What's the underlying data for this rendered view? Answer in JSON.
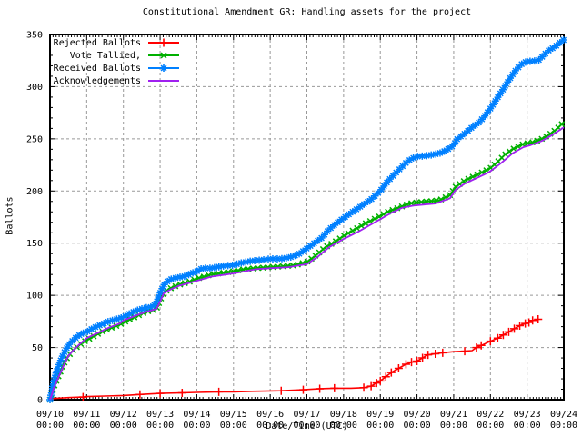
{
  "chart_data": {
    "type": "line",
    "title": "Constitutional Amendment GR: Handling assets for the project",
    "xlabel": "Date/Time (UTC)",
    "ylabel": "Ballots",
    "ylim": [
      0,
      350
    ],
    "y_tick_step": 50,
    "y_minor_step": 10,
    "x_minor_per_day": 12,
    "grid": true,
    "legend_position": "top-left-inside",
    "background_color": "#ffffff",
    "axis_color": "#000000",
    "grid_color": "#999999",
    "x_ticks": [
      {
        "date": "09/10",
        "time": "00:00"
      },
      {
        "date": "09/11",
        "time": "00:00"
      },
      {
        "date": "09/12",
        "time": "00:00"
      },
      {
        "date": "09/13",
        "time": "00:00"
      },
      {
        "date": "09/14",
        "time": "00:00"
      },
      {
        "date": "09/15",
        "time": "00:00"
      },
      {
        "date": "09/16",
        "time": "00:00"
      },
      {
        "date": "09/17",
        "time": "00:00"
      },
      {
        "date": "09/18",
        "time": "00:00"
      },
      {
        "date": "09/19",
        "time": "00:00"
      },
      {
        "date": "09/20",
        "time": "00:00"
      },
      {
        "date": "09/21",
        "time": "00:00"
      },
      {
        "date": "09/22",
        "time": "00:00"
      },
      {
        "date": "09/23",
        "time": "00:00"
      },
      {
        "date": "09/24",
        "time": "00:00"
      }
    ],
    "y_ticks": [
      0,
      50,
      100,
      150,
      200,
      250,
      300,
      350
    ],
    "series": [
      {
        "name": "Rejected Ballots",
        "color": "#ff0000",
        "marker": "plus",
        "line_width": 1.6,
        "points": [
          [
            0,
            1
          ],
          [
            0.5,
            2
          ],
          [
            0.9,
            2.5
          ],
          [
            1.0,
            3
          ],
          [
            1.5,
            3.5
          ],
          [
            2.0,
            4
          ],
          [
            2.45,
            5
          ],
          [
            3.0,
            6
          ],
          [
            3.6,
            6.5
          ],
          [
            4.0,
            7
          ],
          [
            4.6,
            7.5
          ],
          [
            5.0,
            7.5
          ],
          [
            5.5,
            8
          ],
          [
            6.3,
            8.5
          ],
          [
            6.9,
            9.5
          ],
          [
            7.35,
            10.5
          ],
          [
            7.75,
            11
          ],
          [
            8.2,
            11
          ],
          [
            8.55,
            11.5
          ],
          [
            8.75,
            13
          ],
          [
            8.9,
            16
          ],
          [
            9.0,
            18
          ],
          [
            9.15,
            22
          ],
          [
            9.3,
            26
          ],
          [
            9.5,
            30
          ],
          [
            9.7,
            34
          ],
          [
            9.85,
            36
          ],
          [
            10.0,
            37
          ],
          [
            10.15,
            40
          ],
          [
            10.3,
            43
          ],
          [
            10.5,
            44
          ],
          [
            10.7,
            45
          ],
          [
            11.0,
            46
          ],
          [
            11.3,
            46.5
          ],
          [
            11.5,
            47
          ],
          [
            11.62,
            50
          ],
          [
            11.75,
            52
          ],
          [
            12.0,
            56
          ],
          [
            12.2,
            59
          ],
          [
            12.35,
            62
          ],
          [
            12.5,
            65
          ],
          [
            12.65,
            68
          ],
          [
            12.8,
            71
          ],
          [
            12.95,
            73
          ],
          [
            13.05,
            74
          ],
          [
            13.15,
            76
          ],
          [
            13.3,
            77
          ]
        ],
        "marker_days": [
          0.9,
          2.45,
          3.0,
          3.6,
          4.6,
          6.3,
          6.9,
          7.35,
          7.75,
          8.55,
          8.75,
          8.9,
          9.0,
          9.15,
          9.3,
          9.5,
          9.7,
          9.85,
          10.0,
          10.15,
          10.3,
          10.5,
          10.7,
          11.3,
          11.62,
          11.75,
          12.0,
          12.2,
          12.35,
          12.5,
          12.65,
          12.8,
          12.95,
          13.05,
          13.15,
          13.3
        ]
      },
      {
        "name": "Vote Tallied,",
        "color": "#00b000",
        "marker": "cross",
        "line_width": 2,
        "marker_spacing_px": 5.5,
        "points": [
          [
            0,
            0
          ],
          [
            0.05,
            6
          ],
          [
            0.1,
            12
          ],
          [
            0.2,
            20
          ],
          [
            0.3,
            28
          ],
          [
            0.4,
            36
          ],
          [
            0.5,
            42
          ],
          [
            0.62,
            47
          ],
          [
            0.75,
            51
          ],
          [
            0.9,
            55
          ],
          [
            1.0,
            57
          ],
          [
            1.3,
            63
          ],
          [
            1.6,
            68
          ],
          [
            1.9,
            72
          ],
          [
            2.0,
            74
          ],
          [
            2.3,
            79
          ],
          [
            2.6,
            84
          ],
          [
            2.9,
            87
          ],
          [
            3.0,
            95
          ],
          [
            3.1,
            103
          ],
          [
            3.3,
            107
          ],
          [
            3.5,
            110
          ],
          [
            3.8,
            113
          ],
          [
            4.0,
            116
          ],
          [
            4.4,
            120
          ],
          [
            4.8,
            122
          ],
          [
            5.0,
            123
          ],
          [
            5.3,
            125
          ],
          [
            5.6,
            126
          ],
          [
            6.0,
            127
          ],
          [
            6.4,
            128
          ],
          [
            6.7,
            129
          ],
          [
            7.0,
            132
          ],
          [
            7.2,
            137
          ],
          [
            7.5,
            146
          ],
          [
            7.8,
            152
          ],
          [
            8.0,
            157
          ],
          [
            8.3,
            163
          ],
          [
            8.6,
            169
          ],
          [
            9.0,
            176
          ],
          [
            9.2,
            180
          ],
          [
            9.5,
            184
          ],
          [
            9.8,
            188
          ],
          [
            10.0,
            189
          ],
          [
            10.3,
            190
          ],
          [
            10.6,
            191
          ],
          [
            10.9,
            196
          ],
          [
            11.05,
            204
          ],
          [
            11.3,
            210
          ],
          [
            11.6,
            215
          ],
          [
            11.9,
            220
          ],
          [
            12.0,
            222
          ],
          [
            12.2,
            228
          ],
          [
            12.4,
            235
          ],
          [
            12.6,
            240
          ],
          [
            12.9,
            245
          ],
          [
            13.2,
            247
          ],
          [
            13.4,
            250
          ],
          [
            13.6,
            254
          ],
          [
            13.8,
            259
          ],
          [
            14.0,
            266
          ]
        ]
      },
      {
        "name": "Received Ballots",
        "color": "#0080ff",
        "marker": "asterisk",
        "line_width": 2,
        "marker_spacing_px": 5,
        "points": [
          [
            0,
            0
          ],
          [
            0.03,
            5
          ],
          [
            0.08,
            14
          ],
          [
            0.12,
            20
          ],
          [
            0.18,
            27
          ],
          [
            0.25,
            34
          ],
          [
            0.32,
            40
          ],
          [
            0.4,
            46
          ],
          [
            0.5,
            52
          ],
          [
            0.6,
            56
          ],
          [
            0.72,
            60
          ],
          [
            0.85,
            63
          ],
          [
            1.0,
            65
          ],
          [
            1.2,
            69
          ],
          [
            1.4,
            72
          ],
          [
            1.6,
            75
          ],
          [
            1.8,
            77
          ],
          [
            2.0,
            79
          ],
          [
            2.2,
            83
          ],
          [
            2.4,
            86
          ],
          [
            2.6,
            88
          ],
          [
            2.8,
            89
          ],
          [
            2.9,
            93
          ],
          [
            3.0,
            102
          ],
          [
            3.1,
            110
          ],
          [
            3.25,
            115
          ],
          [
            3.45,
            117
          ],
          [
            3.65,
            118
          ],
          [
            3.85,
            121
          ],
          [
            4.0,
            123
          ],
          [
            4.15,
            126
          ],
          [
            4.4,
            126
          ],
          [
            4.7,
            128
          ],
          [
            5.0,
            129
          ],
          [
            5.2,
            131
          ],
          [
            5.5,
            133
          ],
          [
            5.8,
            134
          ],
          [
            6.0,
            135
          ],
          [
            6.3,
            135
          ],
          [
            6.6,
            137
          ],
          [
            6.8,
            140
          ],
          [
            7.0,
            145
          ],
          [
            7.2,
            150
          ],
          [
            7.4,
            155
          ],
          [
            7.6,
            163
          ],
          [
            7.8,
            169
          ],
          [
            8.0,
            174
          ],
          [
            8.2,
            179
          ],
          [
            8.5,
            186
          ],
          [
            8.75,
            192
          ],
          [
            9.0,
            200
          ],
          [
            9.15,
            207
          ],
          [
            9.3,
            213
          ],
          [
            9.5,
            220
          ],
          [
            9.7,
            227
          ],
          [
            9.85,
            231
          ],
          [
            10.0,
            233
          ],
          [
            10.3,
            234
          ],
          [
            10.6,
            236
          ],
          [
            10.8,
            239
          ],
          [
            11.0,
            244
          ],
          [
            11.1,
            250
          ],
          [
            11.3,
            255
          ],
          [
            11.5,
            261
          ],
          [
            11.7,
            266
          ],
          [
            11.85,
            272
          ],
          [
            12.0,
            279
          ],
          [
            12.15,
            287
          ],
          [
            12.3,
            295
          ],
          [
            12.5,
            306
          ],
          [
            12.65,
            314
          ],
          [
            12.8,
            320
          ],
          [
            12.9,
            323
          ],
          [
            13.0,
            324
          ],
          [
            13.3,
            325
          ],
          [
            13.45,
            330
          ],
          [
            13.6,
            335
          ],
          [
            13.75,
            338
          ],
          [
            14.0,
            345
          ]
        ]
      },
      {
        "name": "Acknowledgements",
        "color": "#a020f0",
        "marker": "none",
        "line_width": 1.8,
        "points": [
          [
            0,
            0
          ],
          [
            0.05,
            5
          ],
          [
            0.1,
            11
          ],
          [
            0.2,
            19
          ],
          [
            0.3,
            27
          ],
          [
            0.4,
            35
          ],
          [
            0.5,
            42
          ],
          [
            0.65,
            48
          ],
          [
            0.8,
            53
          ],
          [
            1.0,
            59
          ],
          [
            1.3,
            64
          ],
          [
            1.6,
            69
          ],
          [
            1.9,
            73
          ],
          [
            2.0,
            76
          ],
          [
            2.3,
            80
          ],
          [
            2.6,
            84
          ],
          [
            2.9,
            87
          ],
          [
            3.0,
            94
          ],
          [
            3.1,
            102
          ],
          [
            3.3,
            106
          ],
          [
            3.5,
            109
          ],
          [
            3.8,
            112
          ],
          [
            4.0,
            114
          ],
          [
            4.4,
            118
          ],
          [
            4.8,
            120
          ],
          [
            5.0,
            121
          ],
          [
            5.3,
            123
          ],
          [
            5.6,
            125
          ],
          [
            6.0,
            126
          ],
          [
            6.5,
            127
          ],
          [
            7.0,
            130
          ],
          [
            7.3,
            137
          ],
          [
            7.6,
            146
          ],
          [
            8.0,
            154
          ],
          [
            8.4,
            161
          ],
          [
            8.7,
            167
          ],
          [
            9.0,
            173
          ],
          [
            9.3,
            179
          ],
          [
            9.6,
            184
          ],
          [
            9.9,
            186
          ],
          [
            10.2,
            187
          ],
          [
            10.5,
            188
          ],
          [
            10.9,
            193
          ],
          [
            11.05,
            201
          ],
          [
            11.3,
            207
          ],
          [
            11.6,
            212
          ],
          [
            11.9,
            217
          ],
          [
            12.0,
            219
          ],
          [
            12.3,
            227
          ],
          [
            12.6,
            236
          ],
          [
            12.9,
            242
          ],
          [
            13.1,
            244
          ],
          [
            13.4,
            248
          ],
          [
            13.7,
            254
          ],
          [
            14.0,
            261
          ]
        ]
      }
    ]
  }
}
